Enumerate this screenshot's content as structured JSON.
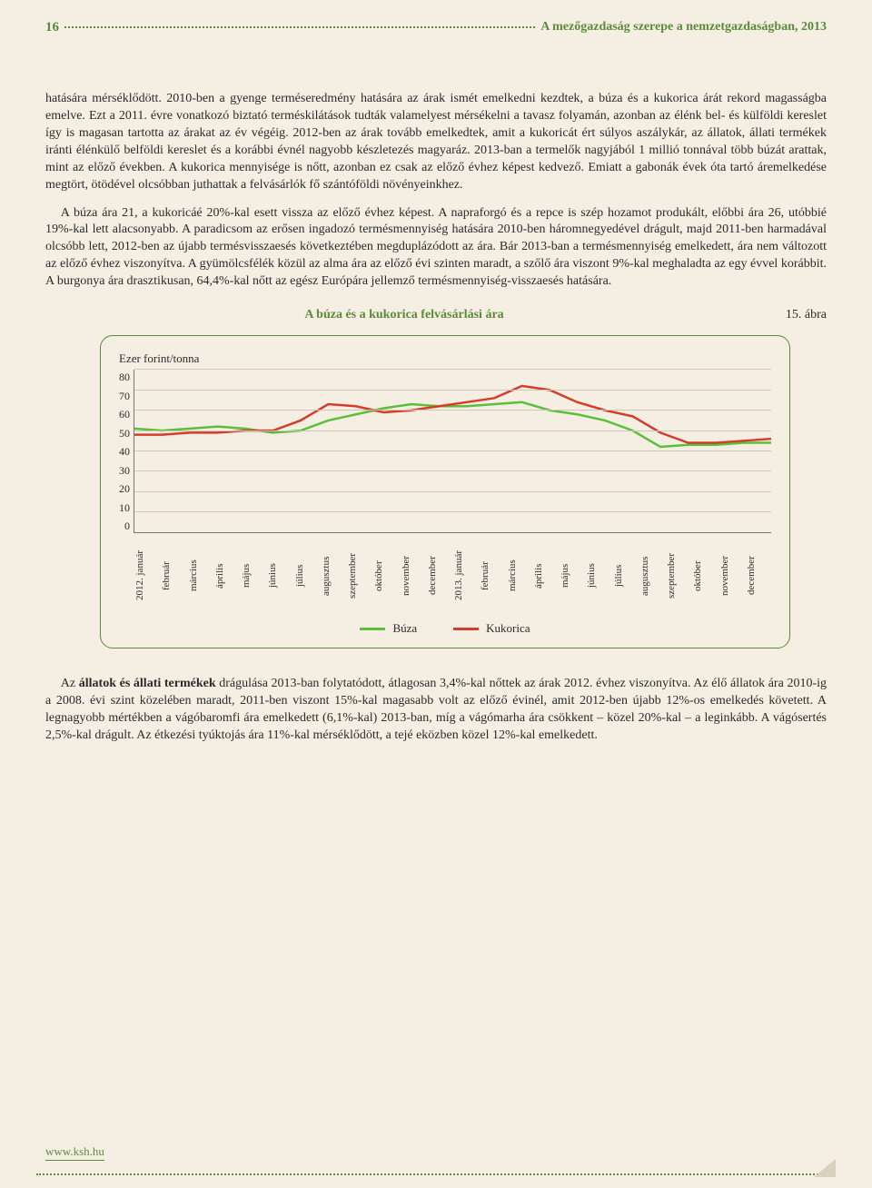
{
  "header": {
    "page_number": "16",
    "title": "A mezőgazdaság szerepe a nemzetgazdaságban, 2013"
  },
  "paragraphs": {
    "p1": "hatására mérséklődött. 2010-ben a gyenge terméseredmény hatására az árak ismét emelkedni kezdtek, a búza és a kukorica árát rekord magasságba emelve. Ezt a 2011. évre vonatkozó biztató terméskilátások tudták valamelyest mérsékelni a tavasz folyamán, azonban az élénk bel- és külföldi kereslet így is magasan tartotta az árakat az év végéig. 2012-ben az árak tovább emelkedtek, amit a kukoricát ért súlyos aszálykár, az állatok, állati termékek iránti élénkülő belföldi kereslet és a korábbi évnél nagyobb készletezés magyaráz. 2013-ban a termelők nagyjából 1 millió tonnával több búzát arattak, mint az előző években. A kukorica mennyisége is nőtt, azonban ez csak az előző évhez képest kedvező. Emiatt a gabonák évek óta tartó áremelkedése megtört, ötödével olcsóbban juthattak a felvásárlók fő szántóföldi növényeinkhez.",
    "p2": "A búza ára 21, a kukoricáé 20%-kal esett vissza az előző évhez képest. A napraforgó és a repce is szép hozamot produkált, előbbi ára 26, utóbbié 19%-kal lett alacsonyabb. A paradicsom az erősen ingadozó termésmennyiség hatására 2010-ben háromnegyedével drágult, majd 2011-ben harmadával olcsóbb lett, 2012-ben az újabb termésvisszaesés következtében megduplázódott az ára. Bár 2013-ban a termésmennyiség emelkedett, ára nem változott az előző évhez viszonyítva. A gyümölcsfélék közül az alma ára az előző évi szinten maradt, a szőlő ára viszont 9%-kal meghaladta az egy évvel korábbit. A burgonya ára drasztikusan, 64,4%-kal nőtt az egész Európára jellemző termésmennyiség-visszaesés hatására.",
    "p3a": "Az ",
    "p3b": "állatok és állati termékek",
    "p3c": " drágulása 2013-ban folytatódott, átlagosan 3,4%-kal nőttek az árak 2012. évhez viszonyítva. Az élő állatok ára 2010-ig a 2008. évi szint közelében maradt, 2011-ben viszont 15%-kal magasabb volt az előző évinél, amit 2012-ben újabb 12%-os emelkedés követett. A legnagyobb mértékben a vágóbaromfi ára emelkedett (6,1%-kal) 2013-ban, míg a vágómarha ára csökkent – közel 20%-kal – a leginkább. A vágósertés 2,5%-kal drágult. Az étkezési tyúktojás ára 11%-kal mérséklődött, a tejé eközben közel 12%-kal emelkedett."
  },
  "figure": {
    "number": "15. ábra",
    "title": "A búza és a kukorica felvásárlási ára",
    "yaxis_label": "Ezer forint/tonna",
    "ylim": [
      0,
      80
    ],
    "yticks": [
      "80",
      "70",
      "60",
      "50",
      "40",
      "30",
      "20",
      "10",
      "0"
    ],
    "xlabels": [
      "2012. január",
      "február",
      "március",
      "április",
      "május",
      "június",
      "július",
      "augusztus",
      "szeptember",
      "október",
      "november",
      "december",
      "2013. január",
      "február",
      "március",
      "április",
      "május",
      "június",
      "július",
      "augusztus",
      "szeptember",
      "október",
      "november",
      "december"
    ],
    "series": {
      "buza": {
        "label": "Búza",
        "color": "#5bbf3a",
        "width": 2.5,
        "values": [
          51,
          50,
          51,
          52,
          51,
          49,
          50,
          55,
          58,
          61,
          63,
          62,
          62,
          63,
          64,
          60,
          58,
          55,
          50,
          42,
          43,
          43,
          44,
          44
        ]
      },
      "kukorica": {
        "label": "Kukorica",
        "color": "#d43d2a",
        "width": 2.5,
        "values": [
          48,
          48,
          49,
          49,
          50,
          50,
          55,
          63,
          62,
          59,
          60,
          62,
          64,
          66,
          72,
          70,
          64,
          60,
          57,
          49,
          44,
          44,
          45,
          46
        ]
      }
    },
    "background": "#f5efe3",
    "grid_color": "#cfc8b8",
    "legend_line_width": 3
  },
  "footer": {
    "url": "www.ksh.hu"
  }
}
